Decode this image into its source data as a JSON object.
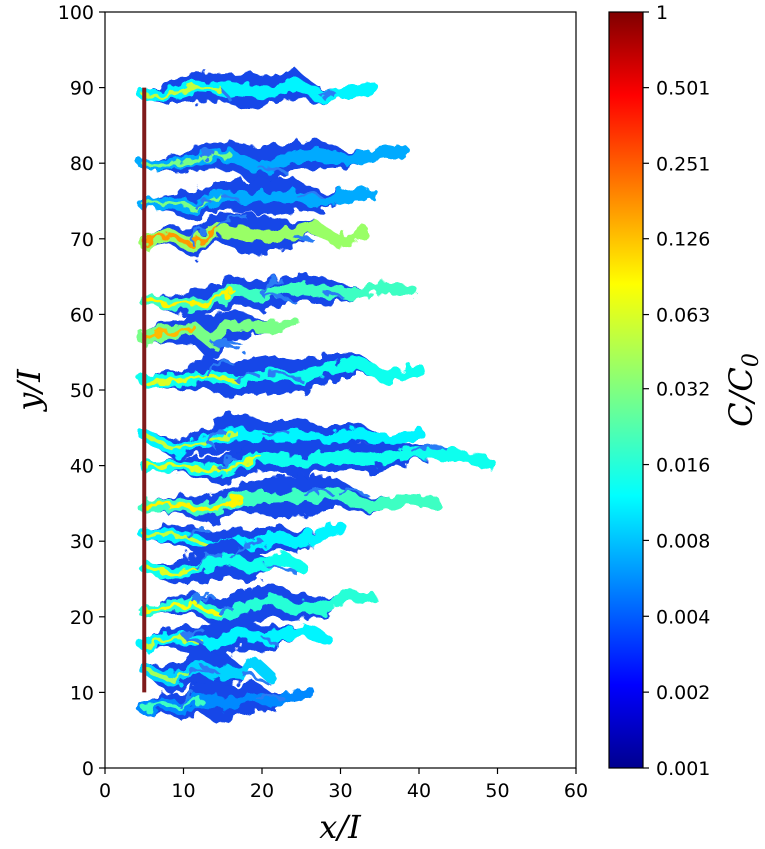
{
  "chart_data": {
    "type": "heatmap",
    "title": "",
    "xlabel": "x/I",
    "ylabel": "y/I",
    "xlim": [
      0,
      60
    ],
    "ylim": [
      0,
      100
    ],
    "x_ticks": [
      "0",
      "10",
      "20",
      "30",
      "40",
      "50",
      "60"
    ],
    "y_ticks": [
      "0",
      "10",
      "20",
      "30",
      "40",
      "50",
      "60",
      "70",
      "80",
      "90",
      "100"
    ],
    "colorbar": {
      "label": "C/C0",
      "label_main": "C/C",
      "label_sub": "0",
      "scale": "log",
      "range": [
        0.001,
        1
      ],
      "tick_labels": [
        "0.001",
        "0.002",
        "0.004",
        "0.008",
        "0.016",
        "0.032",
        "0.063",
        "0.126",
        "0.251",
        "0.501",
        "1"
      ],
      "colormap": "jet"
    },
    "source_line": {
      "x": 5,
      "y_range": [
        10,
        90
      ],
      "value": 1,
      "color": "#7f1a1a"
    },
    "plumes": [
      {
        "y": 89,
        "x_end": 34,
        "peak": 0.05
      },
      {
        "y": 80,
        "x_end": 38,
        "peak": 0.03
      },
      {
        "y": 75,
        "x_end": 34,
        "peak": 0.03
      },
      {
        "y": 70,
        "x_end": 33,
        "peak": 0.15
      },
      {
        "y": 62,
        "x_end": 39,
        "peak": 0.08
      },
      {
        "y": 57,
        "x_end": 24,
        "peak": 0.12
      },
      {
        "y": 52,
        "x_end": 40,
        "peak": 0.06
      },
      {
        "y": 43,
        "x_end": 40,
        "peak": 0.05
      },
      {
        "y": 40,
        "x_end": 49,
        "peak": 0.06
      },
      {
        "y": 35,
        "x_end": 42,
        "peak": 0.08
      },
      {
        "y": 30,
        "x_end": 30,
        "peak": 0.05
      },
      {
        "y": 26,
        "x_end": 25,
        "peak": 0.06
      },
      {
        "y": 21,
        "x_end": 34,
        "peak": 0.07
      },
      {
        "y": 17,
        "x_end": 28,
        "peak": 0.05
      },
      {
        "y": 12,
        "x_end": 21,
        "peak": 0.04
      },
      {
        "y": 8,
        "x_end": 26,
        "peak": 0.02
      }
    ]
  }
}
